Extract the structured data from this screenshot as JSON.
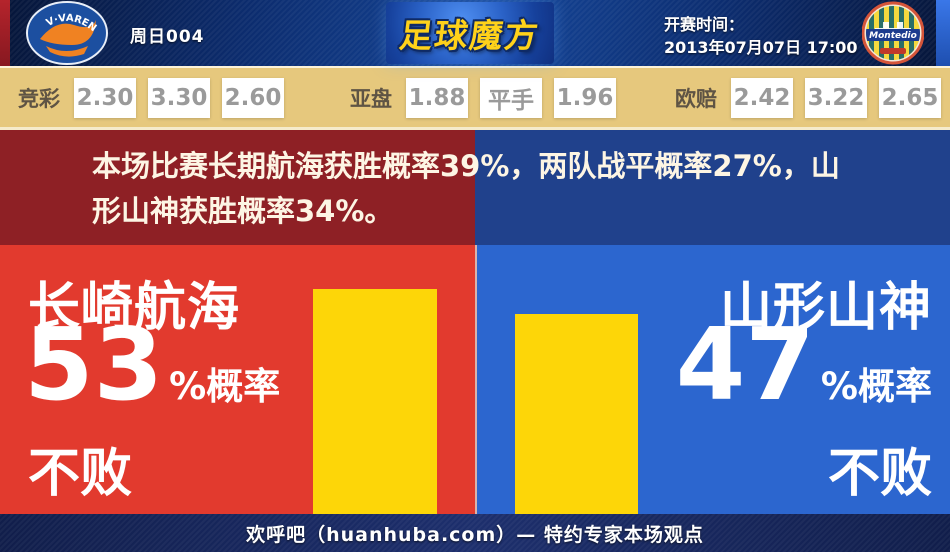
{
  "header": {
    "match_code": "周日004",
    "site_logo": "足球魔方",
    "kickoff_label": "开赛时间：",
    "kickoff_time": "2013年07月07日 17:00",
    "home_logo_text": "V·VAREN",
    "away_logo_text": "Montedio"
  },
  "odds": {
    "groups": [
      {
        "label": "竞彩",
        "values": [
          "2.30",
          "3.30",
          "2.60"
        ]
      },
      {
        "label": "亚盘",
        "values": [
          "1.88",
          "平手",
          "1.96"
        ]
      },
      {
        "label": "欧赔",
        "values": [
          "2.42",
          "3.22",
          "2.65"
        ]
      }
    ]
  },
  "summary": {
    "text": "本场比赛长期航海获胜概率39%，两队战平概率27%，山形山神获胜概率34%。"
  },
  "panels": [
    {
      "team": "长崎航海",
      "probability": 53,
      "suffix": "%概率",
      "verdict": "不败"
    },
    {
      "team": "山形山神",
      "probability": 47,
      "suffix": "%概率",
      "verdict": "不败"
    }
  ],
  "chart_data": {
    "type": "bar",
    "categories": [
      "长崎航海",
      "山形山神"
    ],
    "values": [
      53,
      47
    ],
    "title": "",
    "unit": "%"
  },
  "footer": {
    "text": "欢呼吧（huanhuba.com）— 特约专家本场观点"
  },
  "colors": {
    "home_red": "#e23a2e",
    "away_blue": "#2c66cf",
    "bar_yellow": "#fdd608",
    "summary_red": "#8e2025",
    "summary_blue": "#20418c",
    "odds_tan": "#e6c87d",
    "header_navy": "#0c2c6e",
    "footer_navy": "#1d2f6d",
    "logo_gold": "#ffd21a"
  }
}
